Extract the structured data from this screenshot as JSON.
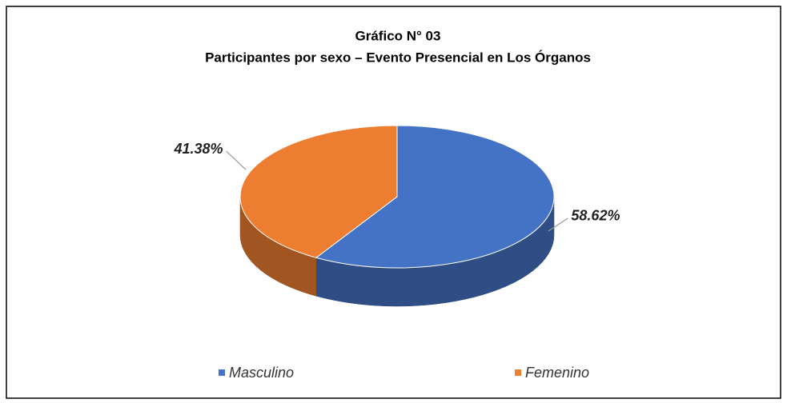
{
  "chart_data": {
    "type": "pie",
    "title": "Gráfico N° 03",
    "subtitle": "Participantes por sexo – Evento Presencial en Los Órganos",
    "categories": [
      "Masculino",
      "Femenino"
    ],
    "values": [
      58.62,
      41.38
    ],
    "value_labels": [
      "58.62%",
      "41.38%"
    ],
    "colors": [
      "#4472c4",
      "#ed7d31"
    ],
    "legend": "bottom"
  }
}
